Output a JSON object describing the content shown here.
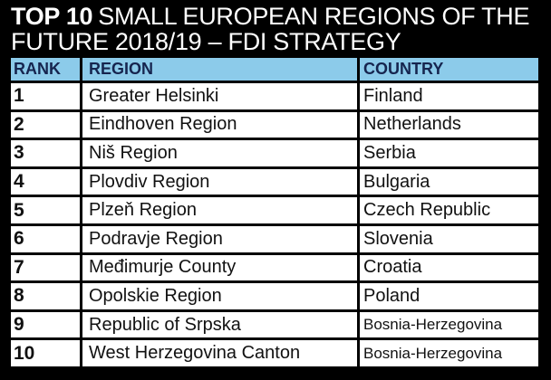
{
  "header": {
    "title_bold": "TOP 10",
    "title_rest": "SMALL EUROPEAN REGIONS OF THE FUTURE 2018/19 – FDI STRATEGY"
  },
  "table": {
    "columns": [
      "RANK",
      "REGION",
      "COUNTRY"
    ],
    "rows": [
      [
        1,
        "Greater Helsinki",
        "Finland"
      ],
      [
        2,
        "Eindhoven Region",
        "Netherlands"
      ],
      [
        3,
        "Niš Region",
        "Serbia"
      ],
      [
        4,
        "Plovdiv Region",
        "Bulgaria"
      ],
      [
        5,
        "Plzeň Region",
        "Czech Republic"
      ],
      [
        6,
        "Podravje Region",
        "Slovenia"
      ],
      [
        7,
        "Međimurje County",
        "Croatia"
      ],
      [
        8,
        "Opolskie Region",
        "Poland"
      ],
      [
        9,
        "Republic of Srpska",
        "Bosnia-Herzegovina"
      ],
      [
        10,
        "West Herzegovina Canton",
        "Bosnia-Herzegovina"
      ]
    ]
  }
}
